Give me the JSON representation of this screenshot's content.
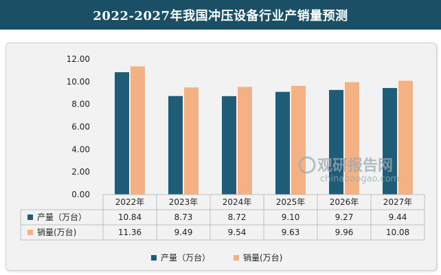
{
  "page": {
    "title": "2022-2027年我国冲压设备行业产销量预测"
  },
  "colors": {
    "title_bg": "#1a4f66",
    "series_production": "#1e5c78",
    "series_sales": "#f4b183"
  },
  "watermark": {
    "brand": "观研报告网",
    "url": "chinabaogao.com"
  },
  "chart_data": {
    "type": "bar",
    "title": "2022-2027年我国冲压设备行业产销量预测",
    "categories": [
      "2022年",
      "2023年",
      "2024年",
      "2025年",
      "2026年",
      "2027年"
    ],
    "series": [
      {
        "name": "产量（万台）",
        "values": [
          10.84,
          8.73,
          8.72,
          9.1,
          9.27,
          9.44
        ],
        "display": [
          "10.84",
          "8.73",
          "8.72",
          "9.10",
          "9.27",
          "9.44"
        ]
      },
      {
        "name": "销量(万台)",
        "values": [
          11.36,
          9.49,
          9.54,
          9.63,
          9.96,
          10.08
        ],
        "display": [
          "11.36",
          "9.49",
          "9.54",
          "9.63",
          "9.96",
          "10.08"
        ]
      }
    ],
    "ylim": [
      0,
      12
    ],
    "yticks": [
      "0.00",
      "2.00",
      "4.00",
      "6.00",
      "8.00",
      "10.00",
      "12.00"
    ],
    "grid": false,
    "data_table": true,
    "legend_position": "bottom"
  }
}
